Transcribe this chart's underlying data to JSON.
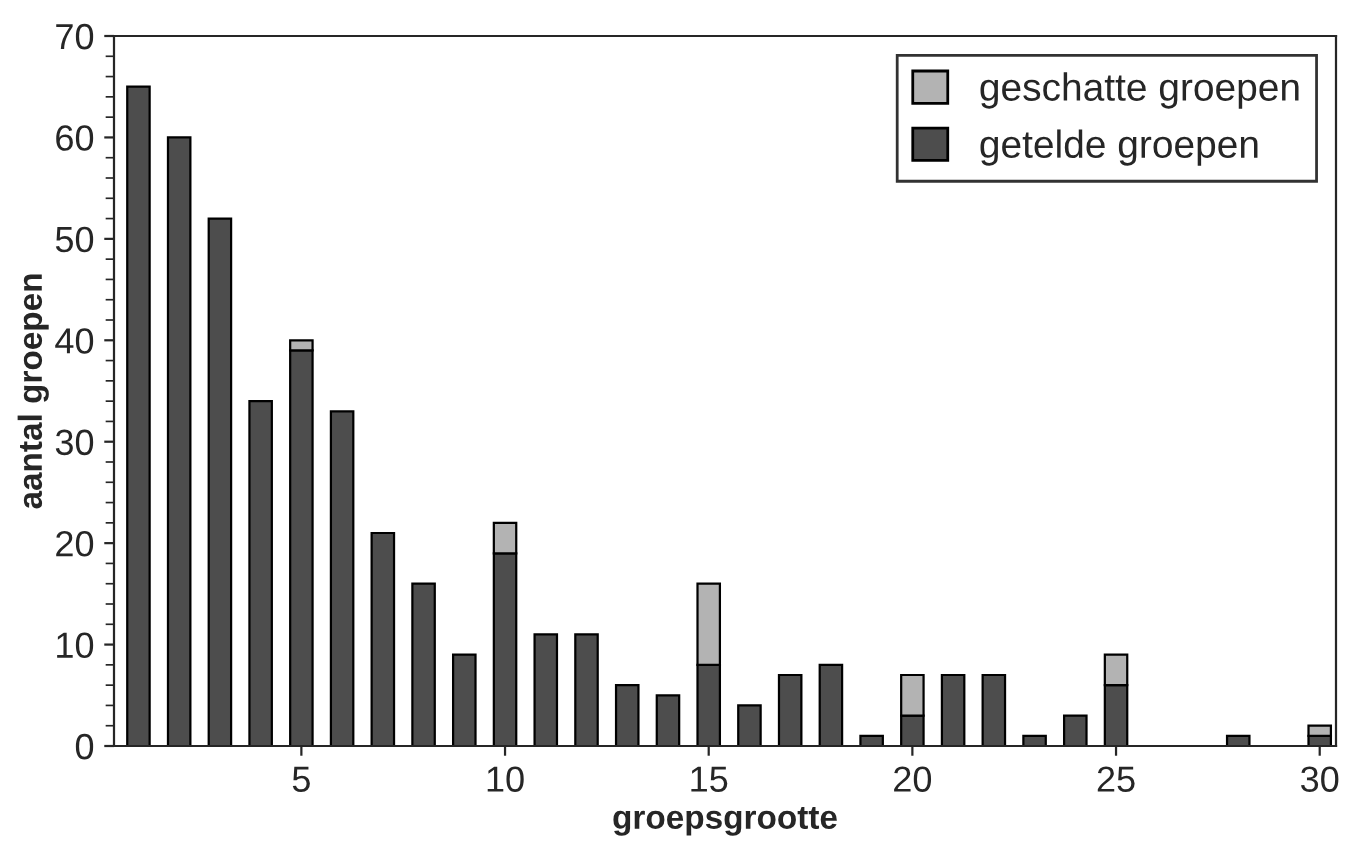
{
  "chart_data": {
    "type": "bar",
    "stacked": true,
    "xlabel": "groepsgrootte",
    "ylabel": "aantal groepen",
    "x": [
      1,
      2,
      3,
      4,
      5,
      6,
      7,
      8,
      9,
      10,
      11,
      12,
      13,
      14,
      15,
      16,
      17,
      18,
      19,
      20,
      21,
      22,
      23,
      24,
      25,
      26,
      27,
      28,
      29,
      30
    ],
    "series": [
      {
        "name": "getelde groepen",
        "color": "#4d4d4d",
        "values": [
          65,
          60,
          52,
          34,
          39,
          33,
          21,
          16,
          9,
          19,
          11,
          11,
          6,
          5,
          8,
          4,
          7,
          8,
          1,
          3,
          7,
          7,
          1,
          3,
          6,
          0,
          0,
          1,
          0,
          1
        ]
      },
      {
        "name": "geschatte groepen",
        "color": "#b3b3b3",
        "values": [
          0,
          0,
          0,
          0,
          1,
          0,
          0,
          0,
          0,
          3,
          0,
          0,
          0,
          0,
          8,
          0,
          0,
          0,
          0,
          4,
          0,
          0,
          0,
          0,
          3,
          0,
          0,
          0,
          0,
          1
        ]
      }
    ],
    "xlim": [
      0.4,
      30.4
    ],
    "xticks": [
      5,
      10,
      15,
      20,
      25,
      30
    ],
    "ylim": [
      0,
      70
    ],
    "yticks": [
      0,
      10,
      20,
      30,
      40,
      50,
      60,
      70
    ],
    "legend": "top right",
    "grid": false
  }
}
